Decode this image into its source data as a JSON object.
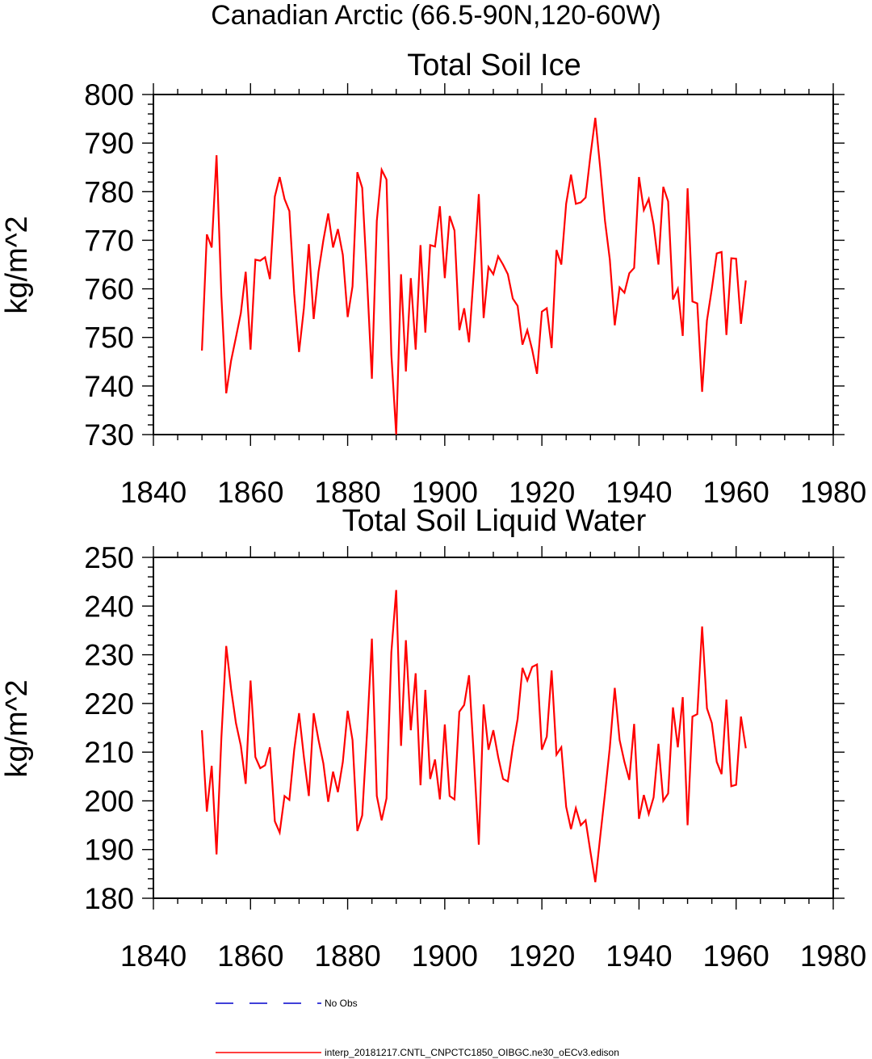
{
  "page_title": "Canadian Arctic (66.5-90N,120-60W)",
  "colors": {
    "series": "#ff0000",
    "no_obs": "#0000cc",
    "axis": "#000000"
  },
  "legend": {
    "no_obs_label": "No Obs",
    "model_label": "interp_20181217.CNTL_CNPCTC1850_OIBGC.ne30_oECv3.edison"
  },
  "chart_data": [
    {
      "type": "line",
      "title": "Total Soil Ice",
      "xlabel": "",
      "ylabel": "kg/m^2",
      "xlim": [
        1840,
        1980
      ],
      "ylim": [
        730,
        800
      ],
      "xticks": [
        1840,
        1860,
        1880,
        1900,
        1920,
        1940,
        1960,
        1980
      ],
      "yticks": [
        730,
        740,
        750,
        760,
        770,
        780,
        790,
        800
      ],
      "grid": false,
      "x": [
        1850,
        1851,
        1852,
        1853,
        1854,
        1855,
        1856,
        1857,
        1858,
        1859,
        1860,
        1861,
        1862,
        1863,
        1864,
        1865,
        1866,
        1867,
        1868,
        1869,
        1870,
        1871,
        1872,
        1873,
        1874,
        1875,
        1876,
        1877,
        1878,
        1879,
        1880,
        1881,
        1882,
        1883,
        1884,
        1885,
        1886,
        1887,
        1888,
        1889,
        1890,
        1891,
        1892,
        1893,
        1894,
        1895,
        1896,
        1897,
        1898,
        1899,
        1900,
        1901,
        1902,
        1903,
        1904,
        1905,
        1906,
        1907,
        1908,
        1909,
        1910,
        1911,
        1912,
        1913,
        1914,
        1915,
        1916,
        1917,
        1918,
        1919,
        1920,
        1921,
        1922,
        1923,
        1924,
        1925,
        1926,
        1927,
        1928,
        1929,
        1930,
        1931,
        1932,
        1933,
        1934,
        1935,
        1936,
        1937,
        1938,
        1939,
        1940,
        1941,
        1942,
        1943,
        1944,
        1945,
        1946,
        1947,
        1948,
        1949,
        1950,
        1951,
        1952,
        1953,
        1954,
        1955,
        1956,
        1957,
        1958,
        1959,
        1960,
        1961,
        1962
      ],
      "series": [
        {
          "values": [
            747.3,
            771.2,
            768.5,
            787.5,
            758.5,
            738.5,
            745.2,
            750.0,
            755.0,
            763.5,
            747.5,
            766.0,
            765.8,
            766.5,
            762.0,
            779.0,
            783.0,
            778.5,
            776.0,
            759.0,
            747.0,
            756.0,
            769.2,
            753.8,
            763.5,
            770.0,
            775.5,
            768.5,
            772.3,
            767.0,
            754.2,
            760.5,
            784.0,
            780.8,
            762.0,
            741.5,
            774.0,
            784.5,
            782.5,
            746.5,
            730.0,
            763.0,
            743.0,
            762.2,
            747.5,
            769.0,
            751.0,
            769.0,
            768.7,
            777.0,
            762.2,
            775.0,
            772.0,
            751.5,
            756.0,
            749.0,
            763.5,
            779.5,
            754.0,
            764.5,
            763.0,
            766.7,
            765.0,
            763.0,
            758.0,
            756.5,
            748.5,
            751.5,
            747.5,
            742.5,
            755.3,
            756.0,
            747.8,
            768.0,
            765.0,
            777.5,
            783.5,
            777.5,
            777.8,
            778.8,
            787.5,
            795.2,
            785.0,
            774.0,
            766.0,
            752.5,
            760.3,
            759.2,
            763.2,
            764.3,
            783.0,
            776.2,
            778.5,
            773.2,
            765.0,
            781.0,
            778.0,
            757.8,
            760.0,
            750.3,
            780.7,
            757.4,
            757.0,
            738.8,
            753.5,
            760.0,
            767.3,
            767.6,
            750.5,
            766.3,
            766.2,
            752.8,
            761.7
          ]
        }
      ]
    },
    {
      "type": "line",
      "title": "Total Soil Liquid Water",
      "xlabel": "",
      "ylabel": "kg/m^2",
      "xlim": [
        1840,
        1980
      ],
      "ylim": [
        180,
        250
      ],
      "xticks": [
        1840,
        1860,
        1880,
        1900,
        1920,
        1940,
        1960,
        1980
      ],
      "yticks": [
        180,
        190,
        200,
        210,
        220,
        230,
        240,
        250
      ],
      "grid": false,
      "x": [
        1850,
        1851,
        1852,
        1853,
        1854,
        1855,
        1856,
        1857,
        1858,
        1859,
        1860,
        1861,
        1862,
        1863,
        1864,
        1865,
        1866,
        1867,
        1868,
        1869,
        1870,
        1871,
        1872,
        1873,
        1874,
        1875,
        1876,
        1877,
        1878,
        1879,
        1880,
        1881,
        1882,
        1883,
        1884,
        1885,
        1886,
        1887,
        1888,
        1889,
        1890,
        1891,
        1892,
        1893,
        1894,
        1895,
        1896,
        1897,
        1898,
        1899,
        1900,
        1901,
        1902,
        1903,
        1904,
        1905,
        1906,
        1907,
        1908,
        1909,
        1910,
        1911,
        1912,
        1913,
        1914,
        1915,
        1916,
        1917,
        1918,
        1919,
        1920,
        1921,
        1922,
        1923,
        1924,
        1925,
        1926,
        1927,
        1928,
        1929,
        1930,
        1931,
        1932,
        1933,
        1934,
        1935,
        1936,
        1937,
        1938,
        1939,
        1940,
        1941,
        1942,
        1943,
        1944,
        1945,
        1946,
        1947,
        1948,
        1949,
        1950,
        1951,
        1952,
        1953,
        1954,
        1955,
        1956,
        1957,
        1958,
        1959,
        1960,
        1961,
        1962
      ],
      "series": [
        {
          "values": [
            214.5,
            197.8,
            207.2,
            189.0,
            213.0,
            231.8,
            223.0,
            216.0,
            211.3,
            203.5,
            224.7,
            209.0,
            206.7,
            207.3,
            211.0,
            195.8,
            193.5,
            201.0,
            200.2,
            210.5,
            218.0,
            209.0,
            201.0,
            218.0,
            212.5,
            207.7,
            199.8,
            206.0,
            201.8,
            208.0,
            218.5,
            212.5,
            193.8,
            197.0,
            214.0,
            233.3,
            201.0,
            196.0,
            200.5,
            230.5,
            243.3,
            211.3,
            233.0,
            214.5,
            226.2,
            203.2,
            222.8,
            204.5,
            208.5,
            200.3,
            215.7,
            201.0,
            200.3,
            218.3,
            219.7,
            225.8,
            209.0,
            191.0,
            219.8,
            210.5,
            214.5,
            209.0,
            204.5,
            204.0,
            211.0,
            216.8,
            227.3,
            224.7,
            227.5,
            228.0,
            210.5,
            213.2,
            226.8,
            209.5,
            211.0,
            198.8,
            194.2,
            198.5,
            195.0,
            196.0,
            189.5,
            183.3,
            192.5,
            201.5,
            211.0,
            223.2,
            212.5,
            208.0,
            204.3,
            215.8,
            196.3,
            201.2,
            197.3,
            200.7,
            211.7,
            200.0,
            201.5,
            219.2,
            211.0,
            221.3,
            195.0,
            217.3,
            217.8,
            235.8,
            219.0,
            216.0,
            208.0,
            205.5,
            220.8,
            203.0,
            203.3,
            217.3,
            210.8
          ]
        }
      ]
    }
  ]
}
